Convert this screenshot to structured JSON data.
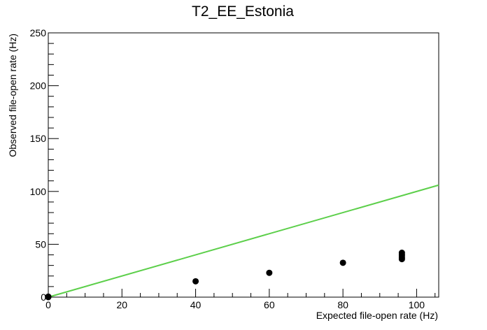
{
  "chart_data": {
    "type": "scatter",
    "title": "T2_EE_Estonia",
    "xlabel": "Expected file-open rate (Hz)",
    "ylabel": "Observed file-open rate (Hz)",
    "xlim": [
      0,
      106
    ],
    "ylim": [
      0,
      250
    ],
    "x_ticks": [
      "0",
      "20",
      "40",
      "60",
      "80",
      "100"
    ],
    "y_ticks": [
      "0",
      "50",
      "100",
      "150",
      "200",
      "250"
    ],
    "grid": false,
    "points": [
      {
        "x": 0,
        "y": 0
      },
      {
        "x": 0,
        "y": 0.5
      },
      {
        "x": 40,
        "y": 15
      },
      {
        "x": 60,
        "y": 23
      },
      {
        "x": 80,
        "y": 32.5
      },
      {
        "x": 96,
        "y": 36
      },
      {
        "x": 96,
        "y": 37.5
      },
      {
        "x": 96,
        "y": 39
      },
      {
        "x": 96,
        "y": 40.5
      },
      {
        "x": 96,
        "y": 42
      }
    ],
    "reference_line": {
      "x": [
        0,
        106
      ],
      "y": [
        0,
        106
      ]
    },
    "colors": {
      "points": "#000000",
      "reference_line": "#5ccf4a",
      "axes": "#000000"
    }
  }
}
